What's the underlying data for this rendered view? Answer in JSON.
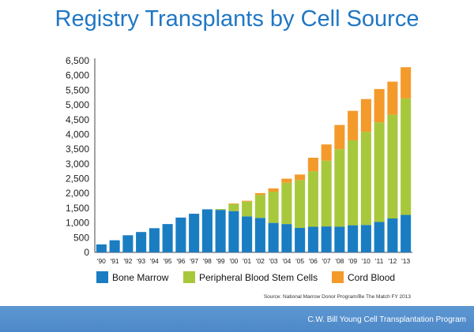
{
  "chart_data": {
    "type": "bar",
    "stacked": true,
    "title": "Registry Transplants by Cell Source",
    "categories": [
      "'90",
      "'91",
      "'92",
      "'93",
      "'94",
      "'95",
      "'96",
      "'97",
      "'98",
      "'99",
      "'00",
      "'01",
      "'02",
      "'03",
      "'04",
      "'05",
      "'06",
      "'07",
      "'08",
      "'09",
      "'10",
      "'11",
      "'12",
      "'13"
    ],
    "series": [
      {
        "name": "Bone Marrow",
        "color": "#1a7dc2",
        "values": [
          270,
          410,
          580,
          690,
          820,
          960,
          1180,
          1310,
          1460,
          1440,
          1400,
          1220,
          1170,
          1000,
          960,
          830,
          870,
          880,
          870,
          920,
          930,
          1030,
          1150,
          1270
        ]
      },
      {
        "name": "Peripheral Blood Stem Cells",
        "color": "#a8c83c",
        "values": [
          0,
          0,
          0,
          0,
          0,
          0,
          0,
          0,
          0,
          30,
          240,
          500,
          780,
          1060,
          1400,
          1620,
          1880,
          2230,
          2630,
          2880,
          3160,
          3380,
          3520,
          3950
        ]
      },
      {
        "name": "Cord Blood",
        "color": "#f39a2b",
        "values": [
          0,
          0,
          0,
          0,
          0,
          0,
          0,
          0,
          0,
          0,
          20,
          30,
          60,
          110,
          140,
          190,
          460,
          550,
          820,
          1000,
          1110,
          1130,
          1120,
          1060
        ]
      }
    ],
    "yticks": [
      "0",
      "500",
      "1,000",
      "1,500",
      "2,000",
      "2,500",
      "3,000",
      "3,500",
      "4,000",
      "4,500",
      "5,000",
      "5,500",
      "6,000",
      "6,500"
    ],
    "ylim": [
      0,
      6500
    ],
    "grid": false,
    "legend_position": "bottom"
  },
  "source_text": "Source: National Marrow Donor Program/Be The Match FY 2013",
  "footer_text": "C.W. Bill Young Cell Transplantation Program"
}
